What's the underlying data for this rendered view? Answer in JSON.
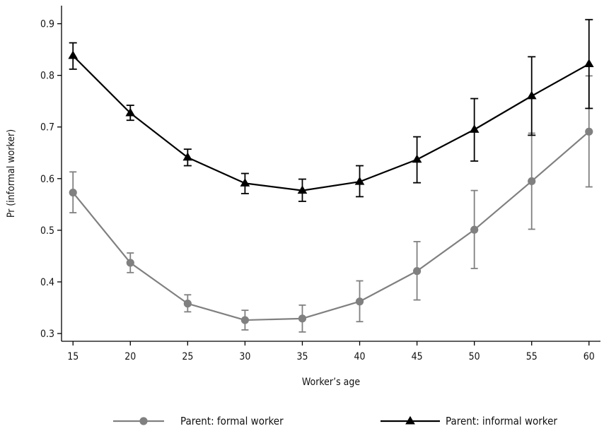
{
  "chart_data": {
    "type": "line",
    "title": "",
    "xlabel": "Worker’s age",
    "ylabel": "Pr (informal worker)",
    "x": [
      15,
      20,
      25,
      30,
      35,
      40,
      45,
      50,
      55,
      60
    ],
    "xlim": [
      14,
      61
    ],
    "ylim": [
      0.285,
      0.935
    ],
    "xticks": [
      15,
      20,
      25,
      30,
      35,
      40,
      45,
      50,
      55,
      60
    ],
    "yticks": [
      0.3,
      0.4,
      0.5,
      0.6,
      0.7,
      0.8,
      0.9
    ],
    "grid": false,
    "legend_position": "bottom",
    "series": [
      {
        "name": "Parent: formal worker",
        "color": "#808080",
        "marker": "circle",
        "values": [
          0.573,
          0.437,
          0.358,
          0.326,
          0.329,
          0.362,
          0.421,
          0.501,
          0.595,
          0.691
        ],
        "lower": [
          0.534,
          0.418,
          0.342,
          0.307,
          0.303,
          0.323,
          0.365,
          0.426,
          0.502,
          0.584
        ],
        "upper": [
          0.613,
          0.456,
          0.375,
          0.345,
          0.355,
          0.402,
          0.478,
          0.577,
          0.688,
          0.799
        ]
      },
      {
        "name": "Parent: informal worker",
        "color": "#000000",
        "marker": "triangle",
        "values": [
          0.838,
          0.727,
          0.641,
          0.591,
          0.577,
          0.594,
          0.637,
          0.695,
          0.76,
          0.822
        ],
        "lower": [
          0.812,
          0.713,
          0.625,
          0.571,
          0.556,
          0.565,
          0.592,
          0.634,
          0.684,
          0.736
        ],
        "upper": [
          0.863,
          0.742,
          0.657,
          0.61,
          0.599,
          0.625,
          0.681,
          0.755,
          0.836,
          0.908
        ]
      }
    ]
  }
}
